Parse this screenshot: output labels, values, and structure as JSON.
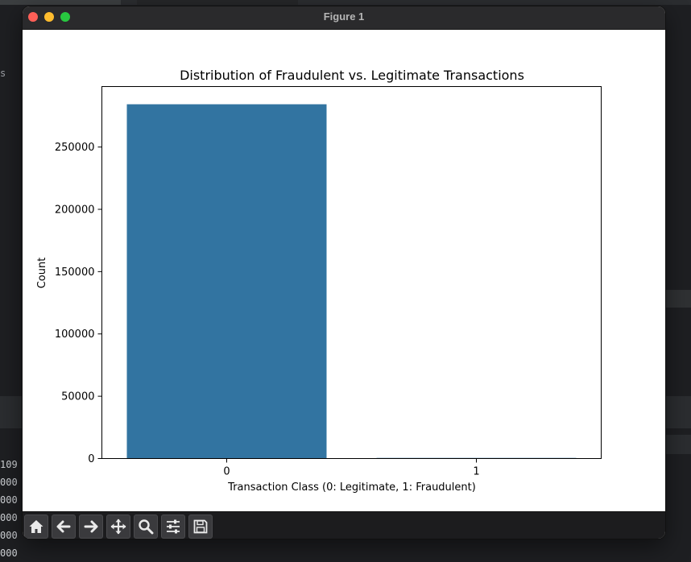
{
  "background": {
    "left_fragment": "s",
    "line_numbers": [
      "109",
      "000",
      "000",
      "000",
      "000",
      "000"
    ]
  },
  "window": {
    "title": "Figure 1"
  },
  "toolbar": {
    "buttons": [
      {
        "name": "home-button",
        "icon": "home-icon"
      },
      {
        "name": "back-button",
        "icon": "arrow-left-icon"
      },
      {
        "name": "forward-button",
        "icon": "arrow-right-icon"
      },
      {
        "name": "pan-button",
        "icon": "move-icon"
      },
      {
        "name": "zoom-button",
        "icon": "magnifier-icon"
      },
      {
        "name": "configure-subplots-button",
        "icon": "sliders-icon"
      },
      {
        "name": "save-button",
        "icon": "floppy-disk-icon"
      }
    ]
  },
  "colors": {
    "bar": "#3274a1",
    "axes": "#000000"
  },
  "chart_data": {
    "type": "bar",
    "title": "Distribution of Fraudulent vs. Legitimate Transactions",
    "xlabel": "Transaction Class (0: Legitimate, 1: Fraudulent)",
    "ylabel": "Count",
    "categories": [
      "0",
      "1"
    ],
    "values": [
      284315,
      492
    ],
    "ylim": [
      0,
      298530
    ],
    "yticks": [
      0,
      50000,
      100000,
      150000,
      200000,
      250000
    ],
    "ytick_labels": [
      "0",
      "50000",
      "100000",
      "150000",
      "200000",
      "250000"
    ],
    "grid": false
  }
}
